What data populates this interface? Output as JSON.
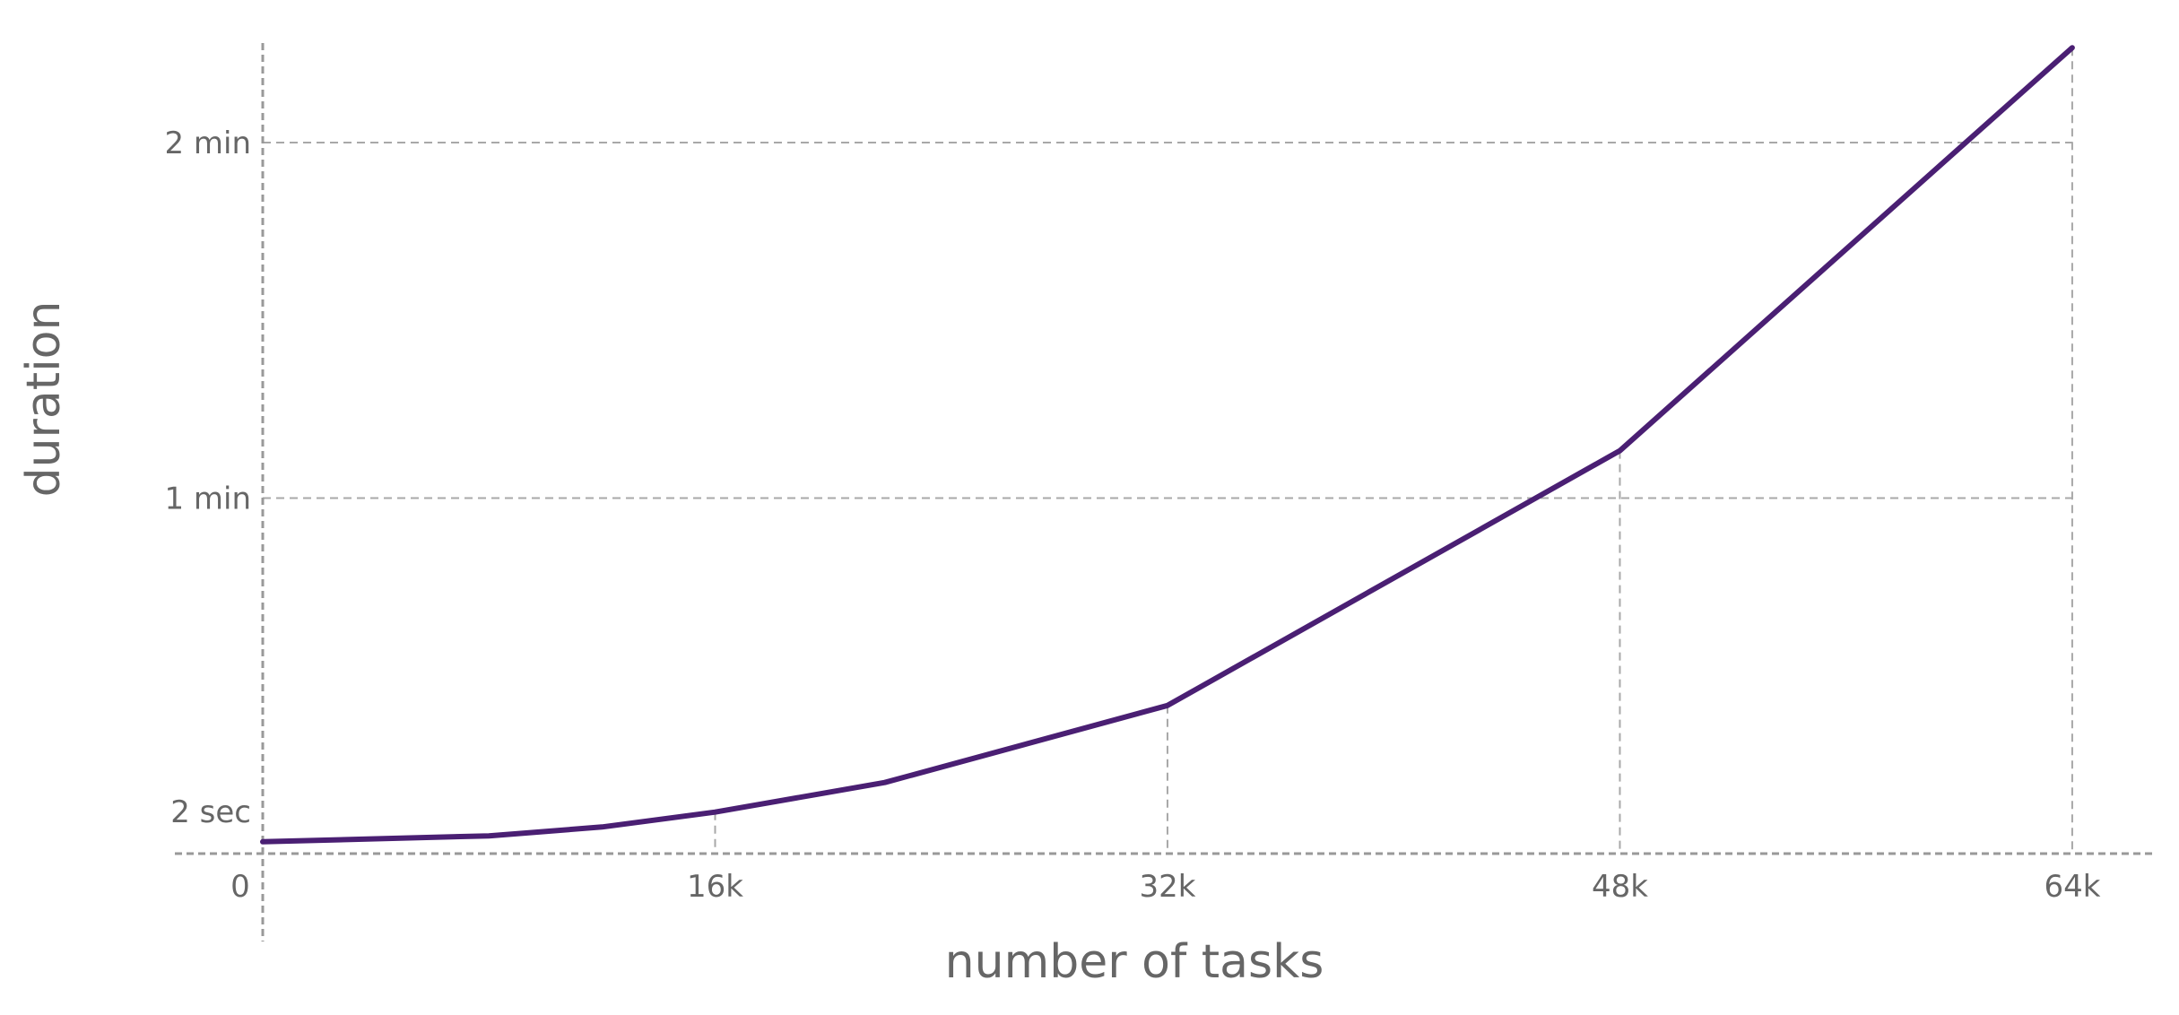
{
  "chart_data": {
    "type": "line",
    "title": "",
    "xlabel": "number of tasks",
    "ylabel": "duration",
    "xlim": [
      0,
      66000
    ],
    "ylim": [
      0,
      138
    ],
    "grid": true,
    "x_ticks": [
      {
        "value": 0,
        "label": "0"
      },
      {
        "value": 16000,
        "label": "16k"
      },
      {
        "value": 32000,
        "label": "32k"
      },
      {
        "value": 48000,
        "label": "48k"
      },
      {
        "value": 64000,
        "label": "64k"
      }
    ],
    "y_ticks": [
      {
        "value": 2,
        "label": "2 sec"
      },
      {
        "value": 60,
        "label": "1 min"
      },
      {
        "value": 120,
        "label": "2 min"
      }
    ],
    "series": [
      {
        "color": "#4a1f73",
        "x": [
          0,
          8000,
          12000,
          16000,
          22000,
          32000,
          48000,
          64000
        ],
        "y": [
          2,
          3,
          4.5,
          7,
          12,
          25,
          68,
          136
        ]
      }
    ]
  }
}
